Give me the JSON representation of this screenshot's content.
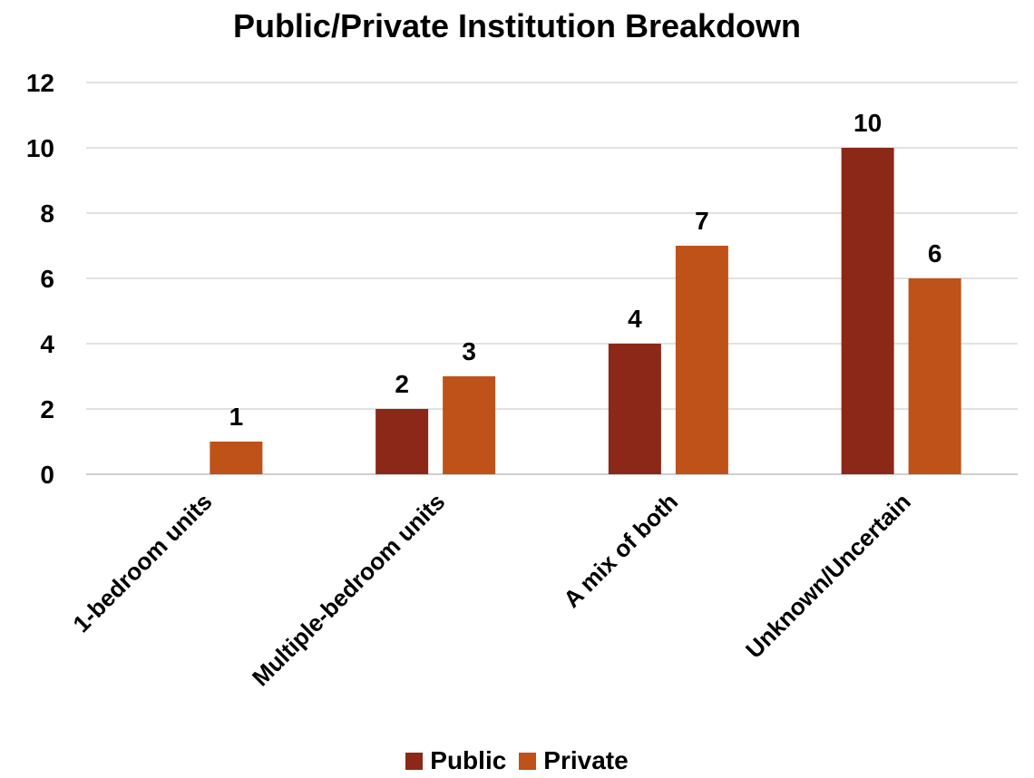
{
  "chart_data": {
    "type": "bar",
    "title": "Public/Private Institution Breakdown",
    "categories": [
      "1-bedroom units",
      "Multiple-bedroom units",
      "A mix of both",
      "Unknown/Uncertain"
    ],
    "series": [
      {
        "name": "Public",
        "values": [
          null,
          2,
          4,
          10
        ],
        "color": "#8B2817"
      },
      {
        "name": "Private",
        "values": [
          1,
          3,
          7,
          6
        ],
        "color": "#BE5218"
      }
    ],
    "ylim": [
      0,
      12
    ],
    "yticks": [
      0,
      2,
      4,
      6,
      8,
      10,
      12
    ],
    "grid": true,
    "legend": "bottom",
    "data_labels": true
  }
}
